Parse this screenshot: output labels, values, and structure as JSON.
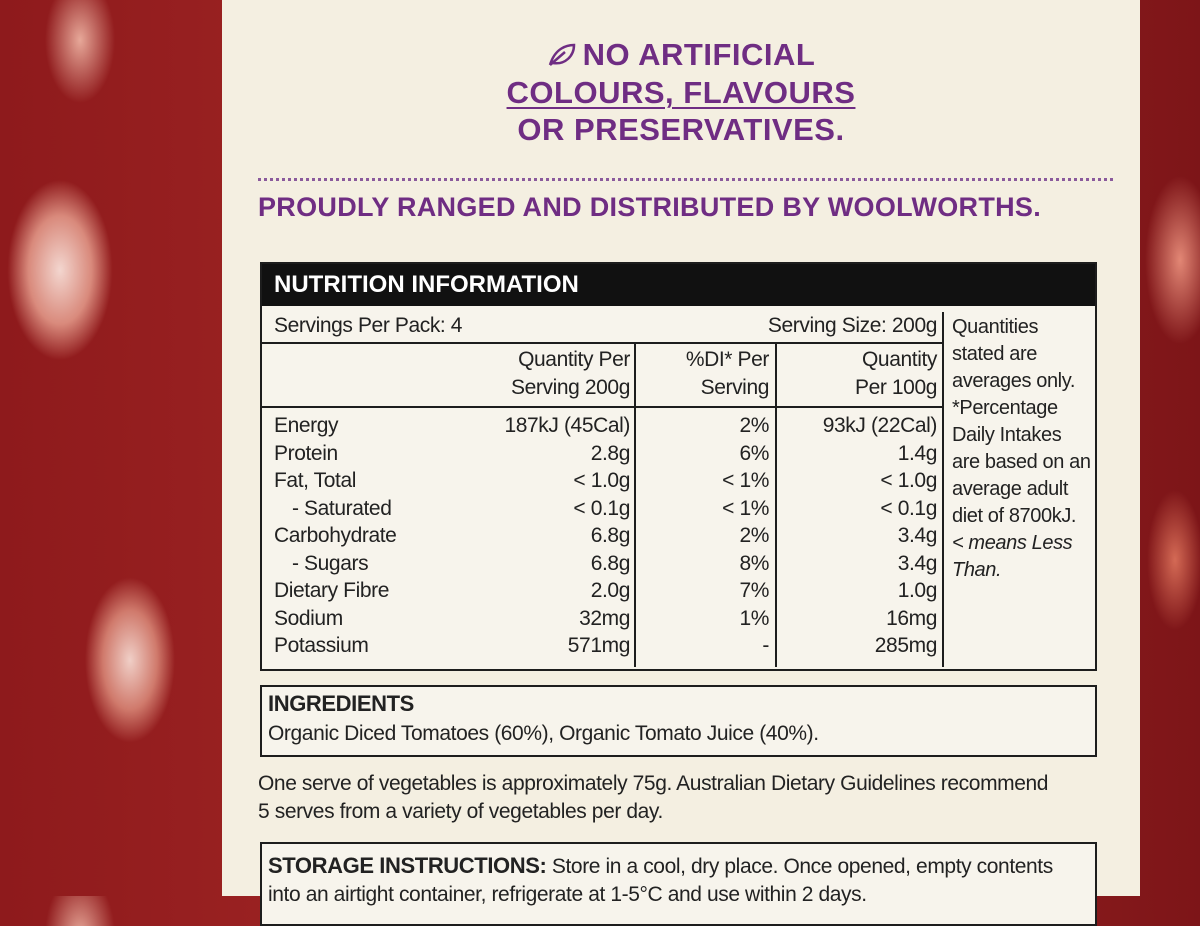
{
  "claims": {
    "lines": [
      "NO ARTIFICIAL",
      "COLOURS, FLAVOURS",
      "OR PRESERVATIVES."
    ]
  },
  "distributor": "PROUDLY RANGED AND DISTRIBUTED BY WOOLWORTHS.",
  "nutrition": {
    "title": "NUTRITION INFORMATION",
    "servings_per_pack": "Servings Per Pack: 4",
    "serving_size": "Serving Size: 200g",
    "headers": [
      [
        "Quantity Per",
        "Serving 200g"
      ],
      [
        "%DI* Per",
        "Serving"
      ],
      [
        "Quantity",
        "Per 100g"
      ]
    ],
    "rows": [
      [
        "Energy",
        "187kJ (45Cal)",
        "2%",
        "93kJ (22Cal)"
      ],
      [
        "Protein",
        "2.8g",
        "6%",
        "1.4g"
      ],
      [
        "Fat, Total",
        "< 1.0g",
        "< 1%",
        "< 1.0g"
      ],
      [
        "- Saturated",
        "< 0.1g",
        "< 1%",
        "< 0.1g"
      ],
      [
        "Carbohydrate",
        "6.8g",
        "2%",
        "3.4g"
      ],
      [
        "- Sugars",
        "6.8g",
        "8%",
        "3.4g"
      ],
      [
        "Dietary Fibre",
        "2.0g",
        "7%",
        "1.0g"
      ],
      [
        "Sodium",
        "32mg",
        "1%",
        "16mg"
      ],
      [
        "Potassium",
        "571mg",
        "-",
        "285mg"
      ]
    ],
    "side_note": "Quantities stated are averages only. *Percentage Daily Intakes are based on an average adult diet of 8700kJ.",
    "side_note_less": "< means Less Than."
  },
  "ingredients": {
    "title": "INGREDIENTS",
    "text": "Organic Diced Tomatoes (60%), Organic Tomato Juice (40%)."
  },
  "vegetable_note": "One serve of vegetables is approximately 75g. Australian Dietary Guidelines recommend 5 serves from a variety of vegetables per day.",
  "storage": {
    "title": "STORAGE INSTRUCTIONS:",
    "text": "Store in a cool, dry place. Once opened, empty contents into an airtight container, refrigerate at 1-5°C and use within 2 days."
  }
}
